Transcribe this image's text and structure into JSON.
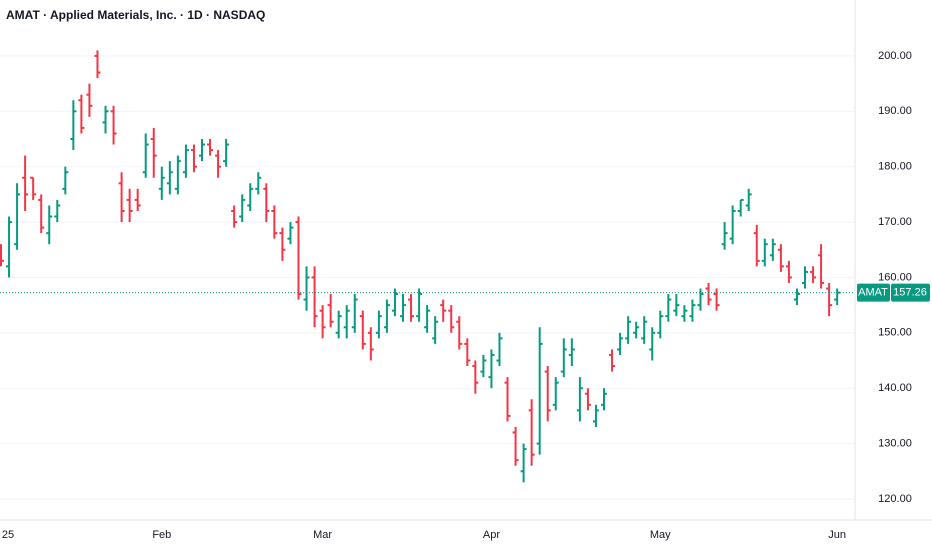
{
  "chart_data": {
    "type": "ohlc",
    "title": "AMAT · Applied Materials, Inc. · 1D · NASDAQ",
    "symbol": "AMAT",
    "categories": [
      "25",
      null,
      null,
      null,
      null,
      null,
      null,
      null,
      null,
      null,
      null,
      null,
      null,
      null,
      null,
      null,
      null,
      null,
      null,
      null,
      "Feb",
      null,
      null,
      null,
      null,
      null,
      null,
      null,
      null,
      null,
      null,
      null,
      null,
      null,
      null,
      null,
      null,
      null,
      null,
      null,
      "Mar",
      null,
      null,
      null,
      null,
      null,
      null,
      null,
      null,
      null,
      null,
      null,
      null,
      null,
      null,
      null,
      null,
      null,
      null,
      null,
      null,
      "Apr",
      null,
      null,
      null,
      null,
      null,
      null,
      null,
      null,
      null,
      null,
      null,
      null,
      null,
      null,
      null,
      null,
      null,
      null,
      null,
      null,
      "May",
      null,
      null,
      null,
      null,
      null,
      null,
      null,
      null,
      null,
      null,
      null,
      null,
      null,
      null,
      null,
      null,
      null,
      null,
      null,
      null,
      null,
      "Jun"
    ],
    "open": [
      165,
      162,
      166,
      178,
      178,
      174,
      168,
      171,
      176,
      185,
      192,
      193,
      200,
      188,
      190,
      177,
      174,
      174,
      179,
      185,
      176,
      177,
      176,
      179,
      183,
      182,
      184,
      182,
      181,
      172,
      171,
      173,
      176,
      176,
      172,
      168,
      167,
      170,
      156,
      160,
      154,
      155,
      150,
      151,
      151,
      153,
      150,
      150,
      151,
      154,
      153,
      156,
      153,
      151,
      149,
      155,
      154,
      152,
      148,
      144,
      143,
      142,
      145,
      141,
      132,
      125,
      136,
      130,
      143,
      137,
      143,
      146,
      136,
      139,
      134,
      137,
      146,
      147,
      149,
      150,
      149,
      147,
      150,
      153,
      154,
      153,
      153,
      155,
      158,
      157,
      166,
      167,
      172,
      173,
      168,
      163,
      164,
      165,
      162,
      156,
      159,
      161,
      164,
      158,
      156
    ],
    "high": [
      166,
      171,
      177,
      182,
      178,
      175,
      173,
      174,
      180,
      192,
      193,
      195,
      201,
      191,
      191,
      179,
      176,
      176,
      186,
      187,
      180,
      181,
      182,
      184,
      184,
      185,
      185,
      183,
      185,
      173,
      175,
      177,
      179,
      177,
      173,
      169,
      170,
      171,
      162,
      162,
      155,
      157,
      154,
      155,
      157,
      154,
      151,
      154,
      156,
      158,
      157,
      157,
      158,
      155,
      153,
      156,
      155,
      153,
      149,
      145,
      146,
      147,
      150,
      142,
      133,
      130,
      138,
      151,
      144,
      142,
      149,
      149,
      142,
      140,
      137,
      140,
      147,
      150,
      153,
      152,
      153,
      151,
      154,
      157,
      157,
      155,
      156,
      158,
      159,
      158,
      170,
      173,
      174,
      176,
      169.5,
      167,
      167,
      166,
      163,
      158,
      162,
      162,
      166,
      159,
      158
    ],
    "low": [
      162,
      160,
      165,
      172,
      174,
      168,
      166,
      170,
      175,
      183,
      186,
      189,
      196,
      186,
      184,
      170,
      170,
      172,
      178,
      178,
      174,
      175,
      175,
      178,
      179,
      181,
      182,
      178,
      180,
      169,
      170,
      172,
      175,
      170,
      167,
      163,
      166,
      156,
      154,
      151,
      149,
      151,
      149,
      149,
      150,
      147,
      145,
      149,
      150,
      153,
      152,
      152,
      152,
      150,
      148,
      152,
      150,
      147,
      144,
      139,
      142,
      140,
      144,
      134,
      126,
      123,
      126,
      128,
      134,
      136,
      142,
      144,
      134,
      136,
      133,
      136,
      143,
      146,
      148,
      149,
      148,
      145,
      149,
      152,
      153,
      152,
      152,
      154,
      155,
      154,
      165,
      166,
      171,
      172,
      162,
      162,
      163,
      161,
      159,
      155,
      158,
      159,
      158,
      153,
      155
    ],
    "close": [
      163,
      170,
      175,
      175,
      175,
      169,
      171,
      173,
      179,
      190,
      187,
      191,
      197,
      190,
      186,
      172,
      172,
      173,
      184,
      182,
      178,
      179,
      181,
      183,
      180,
      184,
      183,
      180,
      184,
      170,
      174,
      176,
      178,
      172,
      168,
      165,
      169,
      157,
      160,
      153,
      151,
      152,
      153,
      154,
      156,
      148,
      147,
      153,
      155,
      157,
      155,
      153,
      157,
      154,
      152,
      154,
      151,
      148,
      145,
      141,
      145,
      146,
      149,
      135,
      127,
      129,
      128,
      148,
      136,
      141,
      147,
      147,
      140,
      137,
      136,
      139,
      144,
      149,
      152,
      151,
      152,
      150,
      153,
      156,
      155,
      154,
      155,
      157,
      156,
      155,
      168,
      172,
      174,
      175,
      163,
      166,
      166,
      162,
      160,
      157,
      161,
      160,
      159,
      155,
      157.26
    ],
    "ylim": [
      116.2,
      210.1
    ],
    "yticks": [
      {
        "value": 120,
        "label": "120.00"
      },
      {
        "value": 130,
        "label": "130.00"
      },
      {
        "value": 140,
        "label": "140.00"
      },
      {
        "value": 150,
        "label": "150.00"
      },
      {
        "value": 160,
        "label": "160.00"
      },
      {
        "value": 170,
        "label": "170.00"
      },
      {
        "value": 180,
        "label": "180.00"
      },
      {
        "value": 190,
        "label": "190.00"
      },
      {
        "value": 200,
        "label": "200.00"
      }
    ],
    "grid": true,
    "up_color": "#089981",
    "down_color": "#f23645"
  }
}
